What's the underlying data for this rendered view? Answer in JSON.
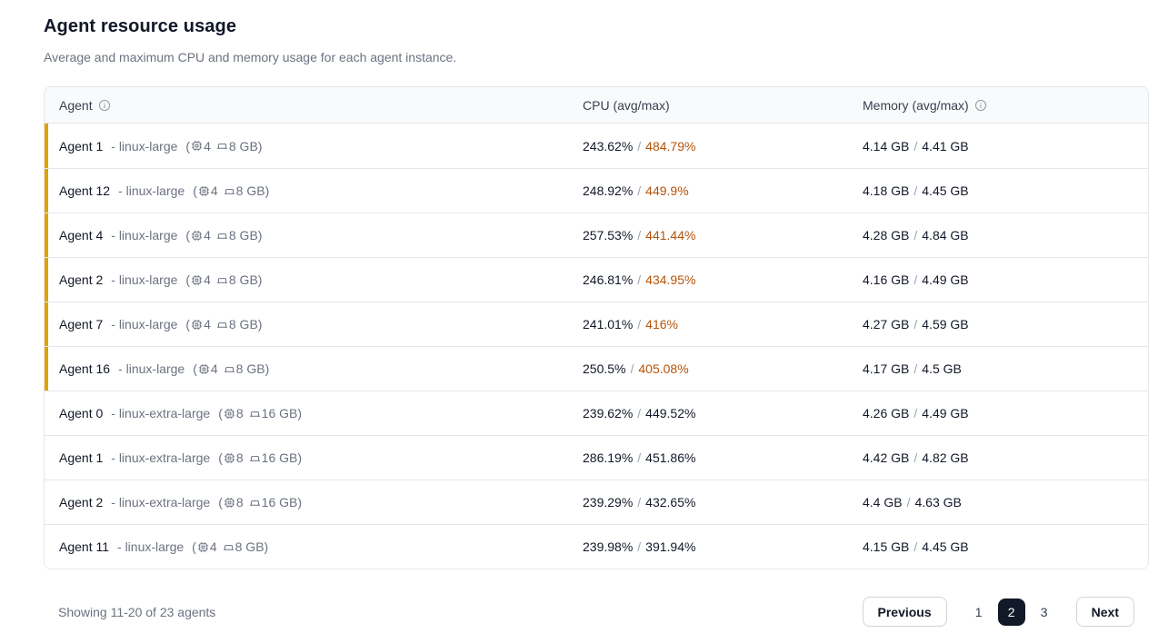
{
  "page": {
    "title": "Agent resource usage",
    "subtitle": "Average and maximum CPU and memory usage for each agent instance."
  },
  "labels": {
    "paren_open": "(",
    "paren_close": ")",
    "value_separator": "/"
  },
  "colors": {
    "highlight_border": "#e3a008",
    "cpu_max_warning_text": "#b45309",
    "active_page_bg": "#111827"
  },
  "table": {
    "columns": {
      "agent": "Agent",
      "cpu": "CPU (avg/max)",
      "memory": "Memory (avg/max)"
    },
    "rows": [
      {
        "name": "Agent 1",
        "type_label": "- linux-large",
        "cpus": "4",
        "mem": "8 GB",
        "cpu_avg": "243.62%",
        "cpu_max": "484.79%",
        "mem_avg": "4.14 GB",
        "mem_max": "4.41 GB",
        "highlight": true
      },
      {
        "name": "Agent 12",
        "type_label": "- linux-large",
        "cpus": "4",
        "mem": "8 GB",
        "cpu_avg": "248.92%",
        "cpu_max": "449.9%",
        "mem_avg": "4.18 GB",
        "mem_max": "4.45 GB",
        "highlight": true
      },
      {
        "name": "Agent 4",
        "type_label": "- linux-large",
        "cpus": "4",
        "mem": "8 GB",
        "cpu_avg": "257.53%",
        "cpu_max": "441.44%",
        "mem_avg": "4.28 GB",
        "mem_max": "4.84 GB",
        "highlight": true
      },
      {
        "name": "Agent 2",
        "type_label": "- linux-large",
        "cpus": "4",
        "mem": "8 GB",
        "cpu_avg": "246.81%",
        "cpu_max": "434.95%",
        "mem_avg": "4.16 GB",
        "mem_max": "4.49 GB",
        "highlight": true
      },
      {
        "name": "Agent 7",
        "type_label": "- linux-large",
        "cpus": "4",
        "mem": "8 GB",
        "cpu_avg": "241.01%",
        "cpu_max": "416%",
        "mem_avg": "4.27 GB",
        "mem_max": "4.59 GB",
        "highlight": true
      },
      {
        "name": "Agent 16",
        "type_label": "- linux-large",
        "cpus": "4",
        "mem": "8 GB",
        "cpu_avg": "250.5%",
        "cpu_max": "405.08%",
        "mem_avg": "4.17 GB",
        "mem_max": "4.5 GB",
        "highlight": true
      },
      {
        "name": "Agent 0",
        "type_label": "- linux-extra-large",
        "cpus": "8",
        "mem": "16 GB",
        "cpu_avg": "239.62%",
        "cpu_max": "449.52%",
        "mem_avg": "4.26 GB",
        "mem_max": "4.49 GB",
        "highlight": false
      },
      {
        "name": "Agent 1",
        "type_label": "- linux-extra-large",
        "cpus": "8",
        "mem": "16 GB",
        "cpu_avg": "286.19%",
        "cpu_max": "451.86%",
        "mem_avg": "4.42 GB",
        "mem_max": "4.82 GB",
        "highlight": false
      },
      {
        "name": "Agent 2",
        "type_label": "- linux-extra-large",
        "cpus": "8",
        "mem": "16 GB",
        "cpu_avg": "239.29%",
        "cpu_max": "432.65%",
        "mem_avg": "4.4 GB",
        "mem_max": "4.63 GB",
        "highlight": false
      },
      {
        "name": "Agent 11",
        "type_label": "- linux-large",
        "cpus": "4",
        "mem": "8 GB",
        "cpu_avg": "239.98%",
        "cpu_max": "391.94%",
        "mem_avg": "4.15 GB",
        "mem_max": "4.45 GB",
        "highlight": false
      }
    ]
  },
  "footer": {
    "summary": "Showing 11-20 of 23 agents",
    "previous_label": "Previous",
    "next_label": "Next",
    "pages": [
      "1",
      "2",
      "3"
    ],
    "active_page": "2"
  }
}
